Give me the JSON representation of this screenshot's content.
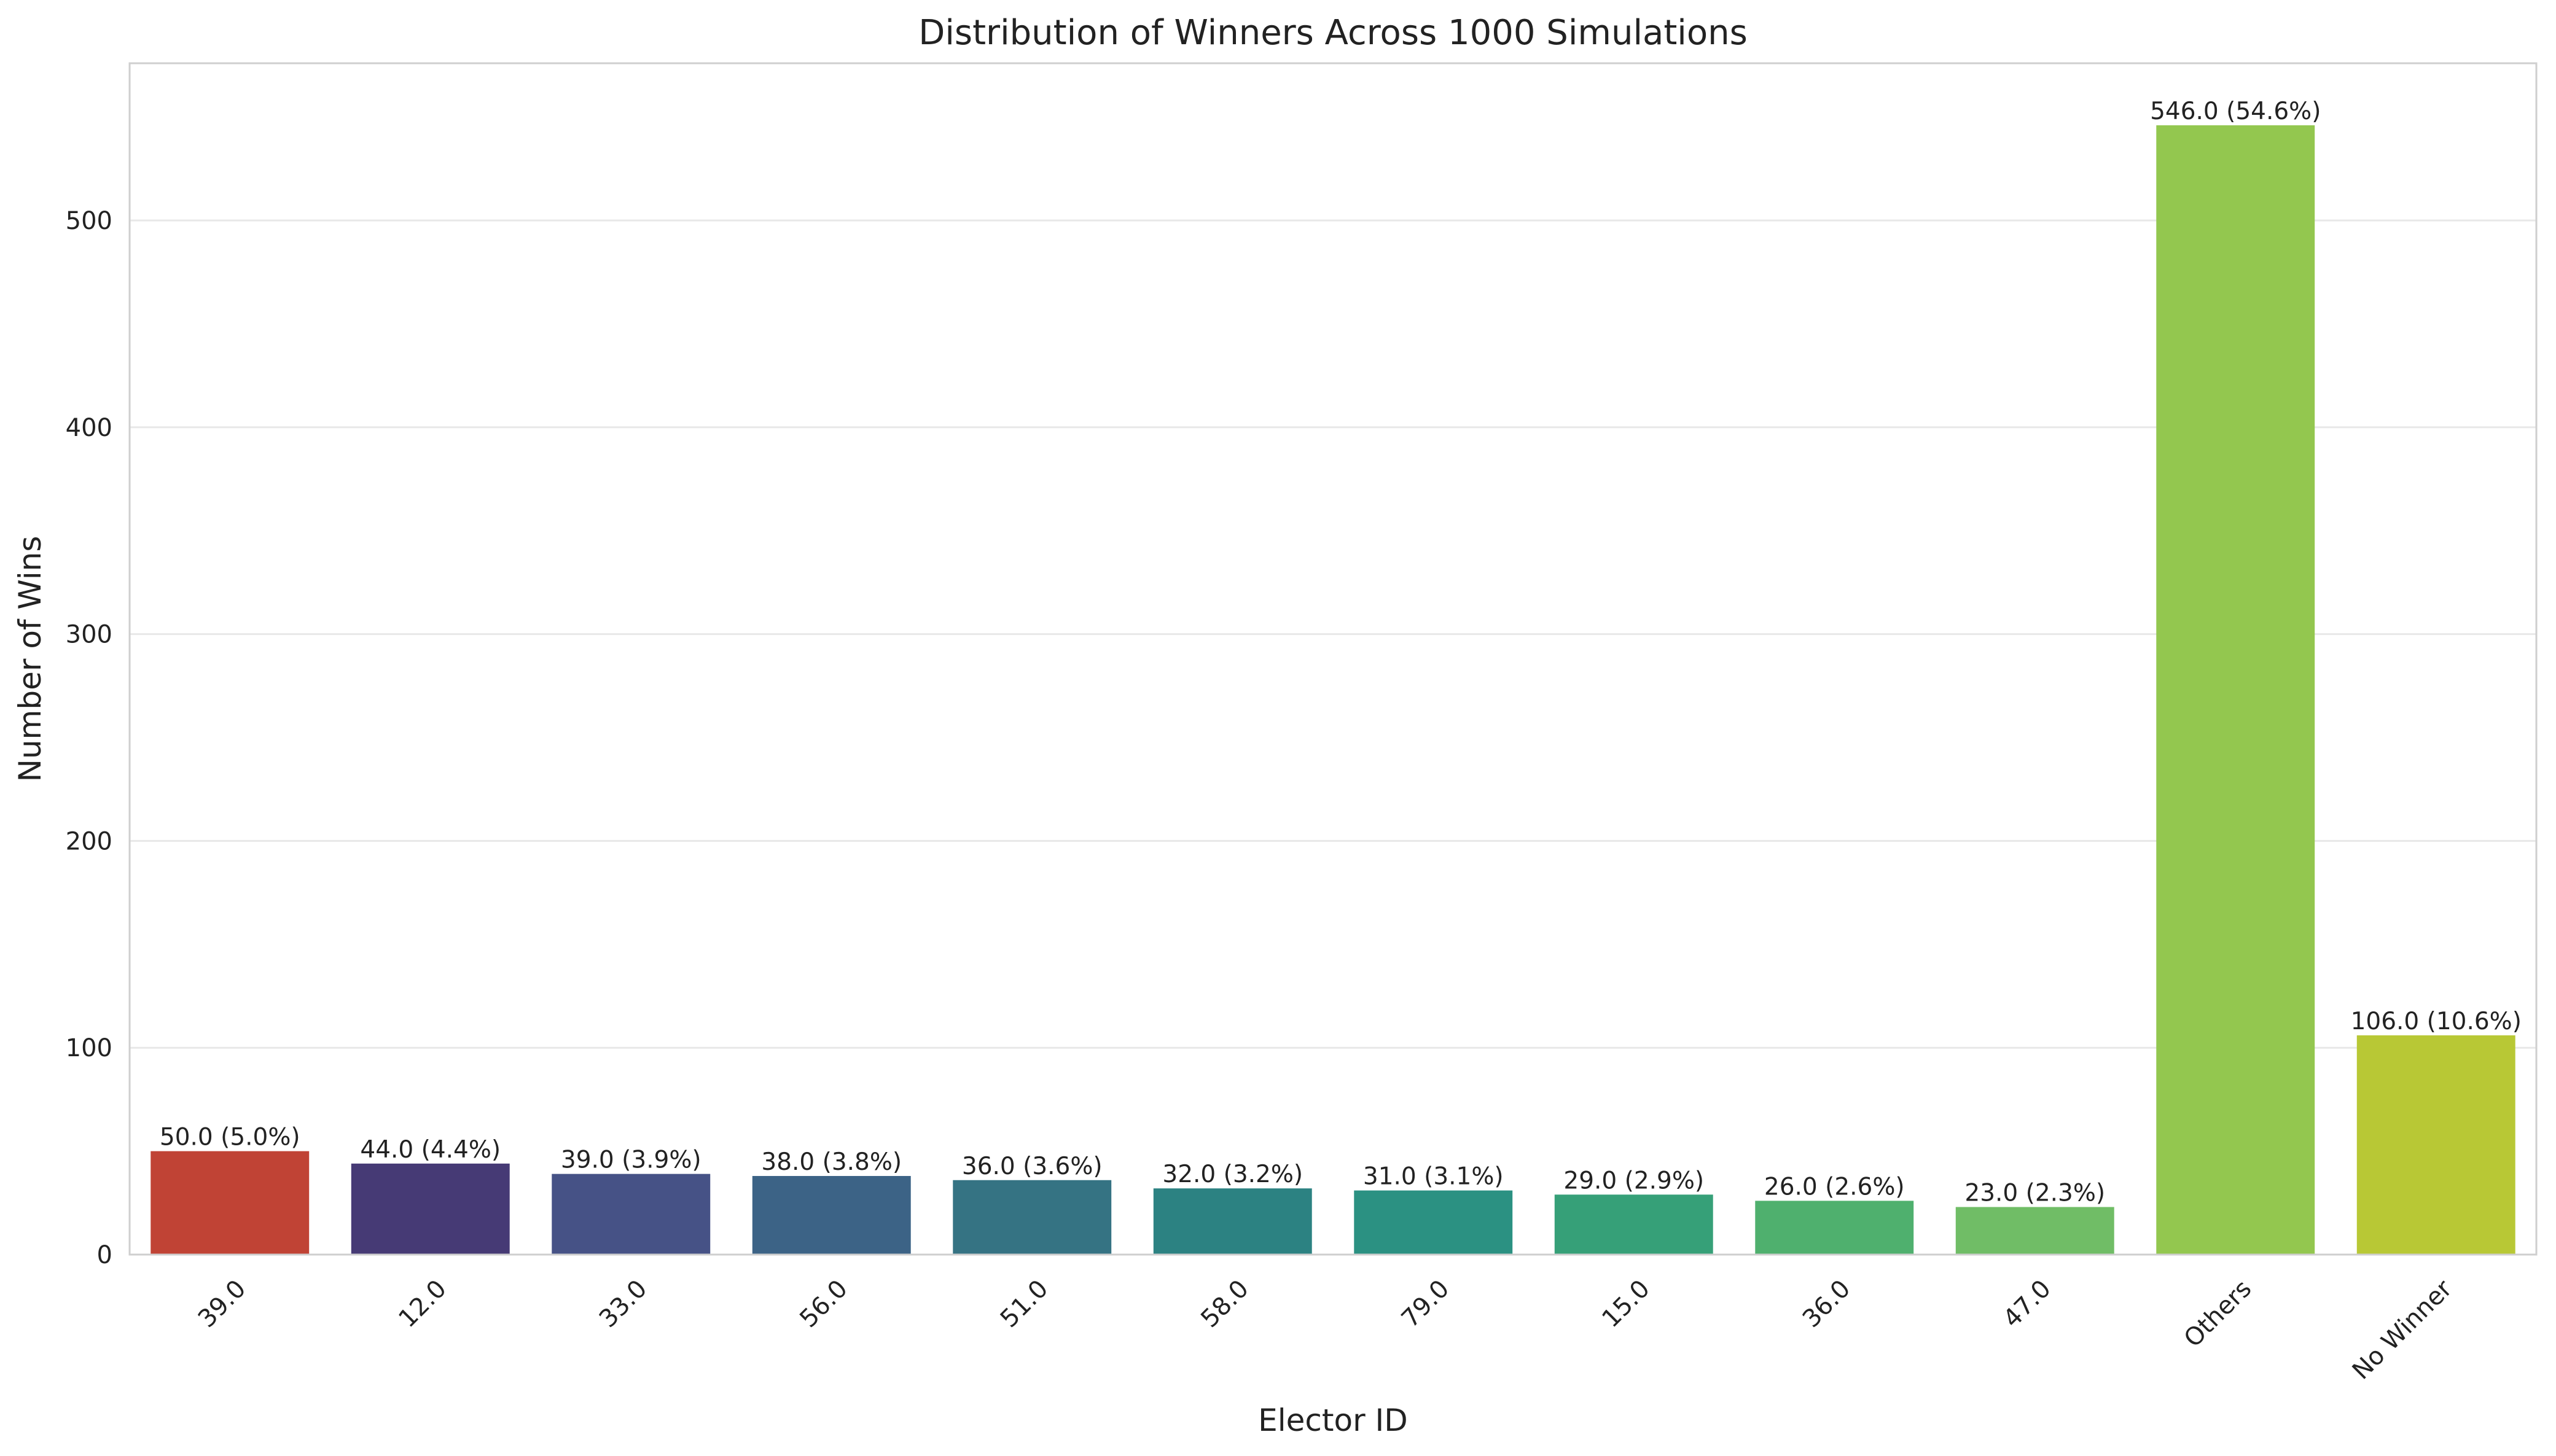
{
  "chart_data": {
    "type": "bar",
    "title": "Distribution of Winners Across 1000 Simulations",
    "xlabel": "Elector ID",
    "ylabel": "Number of Wins",
    "categories": [
      "39.0",
      "12.0",
      "33.0",
      "56.0",
      "51.0",
      "58.0",
      "79.0",
      "15.0",
      "36.0",
      "47.0",
      "Others",
      "No Winner"
    ],
    "values": [
      50,
      44,
      39,
      38,
      36,
      32,
      31,
      29,
      26,
      23,
      546,
      106
    ],
    "data_labels": [
      "50.0 (5.0%)",
      "44.0 (4.4%)",
      "39.0 (3.9%)",
      "38.0 (3.8%)",
      "36.0 (3.6%)",
      "32.0 (3.2%)",
      "31.0 (3.1%)",
      "29.0 (2.9%)",
      "26.0 (2.6%)",
      "23.0 (2.3%)",
      "546.0 (54.6%)",
      "106.0 (10.6%)"
    ],
    "colors": [
      "#c04335",
      "#463a75",
      "#465286",
      "#3c6386",
      "#357383",
      "#2c8282",
      "#2b9182",
      "#36a078",
      "#4fb06e",
      "#70bd66",
      "#93c74f",
      "#b8c835"
    ],
    "ylim": [
      0,
      576
    ],
    "yticks": [
      0,
      100,
      200,
      300,
      400,
      500
    ],
    "grid": true,
    "legend": "none"
  }
}
